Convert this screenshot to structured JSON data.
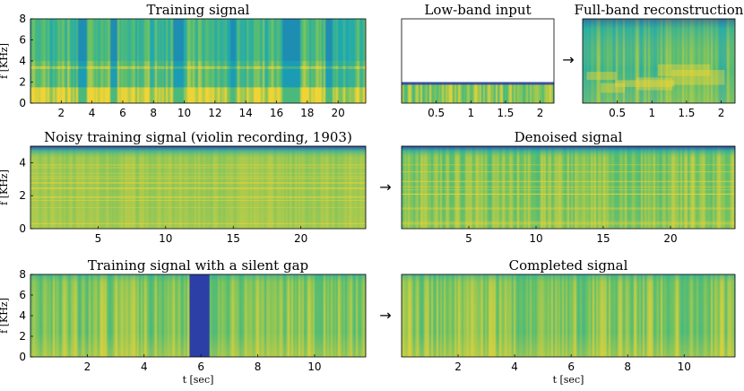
{
  "colors": {
    "blue": "#2b3fa6",
    "cyan": "#1aa7b6",
    "green": "#5cbf6a",
    "yellow": "#f0d435",
    "frame": "#000000",
    "empty": "#ffffff"
  },
  "arrow_glyph": "→",
  "chart_data": [
    {
      "type": "heatmap",
      "id": "training",
      "title": "Training signal",
      "xlabel": "",
      "ylabel": "f [KHz]",
      "xlim": [
        0,
        21.8
      ],
      "ylim": [
        0,
        8
      ],
      "xticks": [
        2,
        4,
        6,
        8,
        10,
        12,
        14,
        16,
        18,
        20
      ],
      "yticks": [
        0,
        2,
        4,
        6,
        8
      ],
      "texture": "speech",
      "silences": [
        [
          3.1,
          3.7
        ],
        [
          5.2,
          5.6
        ],
        [
          9.3,
          10.0
        ],
        [
          13.0,
          13.4
        ],
        [
          16.4,
          17.5
        ],
        [
          19.2,
          19.6
        ]
      ]
    },
    {
      "type": "heatmap",
      "id": "lowband",
      "title": "Low-band input",
      "xlabel": "",
      "ylabel": "",
      "xlim": [
        0,
        2.2
      ],
      "ylim": [
        0,
        8
      ],
      "xticks": [
        0.5,
        1,
        1.5,
        2
      ],
      "xticklabels": [
        "0.5",
        "1",
        "1.5",
        "2"
      ],
      "yticks": [],
      "texture": "lowband",
      "band_top": 2
    },
    {
      "type": "heatmap",
      "id": "fullband",
      "title": "Full-band reconstruction",
      "xlabel": "",
      "ylabel": "",
      "xlim": [
        0,
        2.2
      ],
      "ylim": [
        0,
        8
      ],
      "xticks": [
        0.5,
        1,
        1.5,
        2
      ],
      "xticklabels": [
        "0.5",
        "1",
        "1.5",
        "2"
      ],
      "yticks": [],
      "texture": "fullband"
    },
    {
      "type": "heatmap",
      "id": "noisy",
      "title": "Noisy training signal (violin recording, 1903)",
      "xlabel": "",
      "ylabel": "f [KHz]",
      "xlim": [
        0,
        24.8
      ],
      "ylim": [
        0,
        5
      ],
      "xticks": [
        5,
        10,
        15,
        20
      ],
      "yticks": [
        0,
        2,
        4
      ],
      "texture": "noisy"
    },
    {
      "type": "heatmap",
      "id": "denoised",
      "title": "Denoised signal",
      "xlabel": "",
      "ylabel": "",
      "xlim": [
        0,
        24.8
      ],
      "ylim": [
        0,
        5
      ],
      "xticks": [
        5,
        10,
        15,
        20
      ],
      "yticks": [],
      "texture": "denoised"
    },
    {
      "type": "heatmap",
      "id": "gap",
      "title": "Training signal with a silent gap",
      "xlabel": "t [sec]",
      "ylabel": "f [KHz]",
      "xlim": [
        0,
        11.8
      ],
      "ylim": [
        0,
        8
      ],
      "xticks": [
        2,
        4,
        6,
        8,
        10
      ],
      "yticks": [
        0,
        2,
        4,
        6,
        8
      ],
      "texture": "music",
      "gap": [
        5.6,
        6.3
      ]
    },
    {
      "type": "heatmap",
      "id": "completed",
      "title": "Completed signal",
      "xlabel": "t [sec]",
      "ylabel": "",
      "xlim": [
        0,
        11.8
      ],
      "ylim": [
        0,
        8
      ],
      "xticks": [
        2,
        4,
        6,
        8,
        10
      ],
      "yticks": [],
      "texture": "music"
    }
  ]
}
